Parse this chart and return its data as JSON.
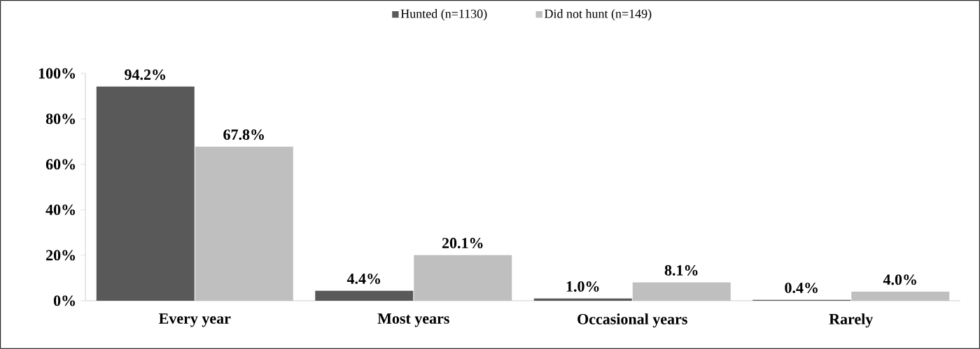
{
  "chart_data": {
    "type": "bar",
    "categories": [
      "Every year",
      "Most years",
      "Occasional years",
      "Rarely"
    ],
    "series": [
      {
        "name": "Hunted (n=1130)",
        "color": "#595959",
        "values": [
          94.2,
          4.4,
          1.0,
          0.4
        ],
        "value_labels": [
          "94.2%",
          "4.4%",
          "1.0%",
          "0.4%"
        ]
      },
      {
        "name": "Did not hunt (n=149)",
        "color": "#bfbfbf",
        "values": [
          67.8,
          20.1,
          8.1,
          4.0
        ],
        "value_labels": [
          "67.8%",
          "20.1%",
          "8.1%",
          "4.0%"
        ]
      }
    ],
    "ylim": [
      0,
      100
    ],
    "yticks": [
      {
        "value": 0,
        "label": "0%"
      },
      {
        "value": 20,
        "label": "20%"
      },
      {
        "value": 40,
        "label": "40%"
      },
      {
        "value": 60,
        "label": "60%"
      },
      {
        "value": 80,
        "label": "80%"
      },
      {
        "value": 100,
        "label": "100%"
      }
    ],
    "grid": false,
    "legend": "top"
  }
}
